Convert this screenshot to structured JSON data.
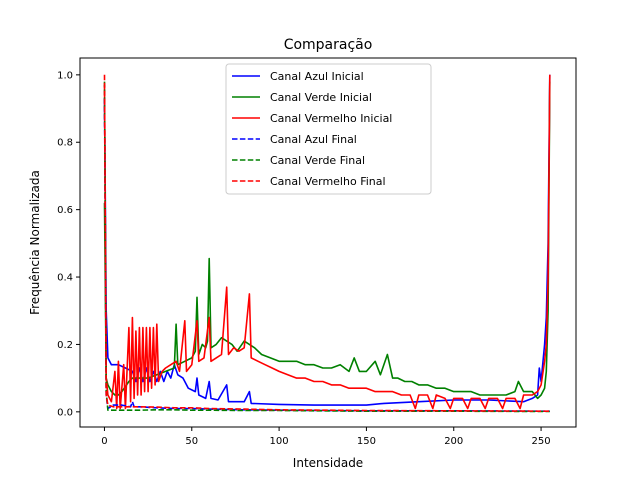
{
  "chart_data": {
    "type": "line",
    "title": "Comparação",
    "xlabel": "Intensidade",
    "ylabel": "Frequência Normalizada",
    "xlim": [
      -14,
      270
    ],
    "ylim": [
      -0.045,
      1.05
    ],
    "xticks": [
      0,
      50,
      100,
      150,
      200,
      250
    ],
    "yticks": [
      0.0,
      0.2,
      0.4,
      0.6,
      0.8,
      1.0
    ],
    "xtick_labels": [
      "0",
      "50",
      "100",
      "150",
      "200",
      "250"
    ],
    "ytick_labels": [
      "0.0",
      "0.2",
      "0.4",
      "0.6",
      "0.8",
      "1.0"
    ],
    "grid": false,
    "legend_position": "top-center",
    "series": [
      {
        "name": "Canal Azul Inicial",
        "color": "#0000ff",
        "dashed": false,
        "points": [
          [
            0,
            0.93
          ],
          [
            1,
            0.3
          ],
          [
            2,
            0.16
          ],
          [
            4,
            0.14
          ],
          [
            8,
            0.14
          ],
          [
            12,
            0.13
          ],
          [
            16,
            0.12
          ],
          [
            18,
            0.09
          ],
          [
            20,
            0.13
          ],
          [
            22,
            0.09
          ],
          [
            24,
            0.13
          ],
          [
            26,
            0.09
          ],
          [
            28,
            0.12
          ],
          [
            30,
            0.09
          ],
          [
            32,
            0.12
          ],
          [
            34,
            0.09
          ],
          [
            36,
            0.12
          ],
          [
            38,
            0.1
          ],
          [
            40,
            0.14
          ],
          [
            42,
            0.11
          ],
          [
            45,
            0.1
          ],
          [
            48,
            0.07
          ],
          [
            52,
            0.06
          ],
          [
            53,
            0.1
          ],
          [
            54,
            0.05
          ],
          [
            58,
            0.04
          ],
          [
            60,
            0.09
          ],
          [
            61,
            0.04
          ],
          [
            65,
            0.035
          ],
          [
            70,
            0.08
          ],
          [
            71,
            0.03
          ],
          [
            80,
            0.03
          ],
          [
            83,
            0.06
          ],
          [
            84,
            0.025
          ],
          [
            100,
            0.022
          ],
          [
            120,
            0.02
          ],
          [
            140,
            0.02
          ],
          [
            150,
            0.02
          ],
          [
            160,
            0.025
          ],
          [
            180,
            0.03
          ],
          [
            200,
            0.035
          ],
          [
            220,
            0.035
          ],
          [
            240,
            0.03
          ],
          [
            245,
            0.04
          ],
          [
            248,
            0.05
          ],
          [
            249,
            0.13
          ],
          [
            250,
            0.09
          ],
          [
            252,
            0.2
          ],
          [
            253,
            0.28
          ],
          [
            254,
            0.5
          ],
          [
            255,
            1.0
          ]
        ]
      },
      {
        "name": "Canal Verde Inicial",
        "color": "#008000",
        "dashed": false,
        "points": [
          [
            0,
            0.62
          ],
          [
            1,
            0.1
          ],
          [
            2,
            0.08
          ],
          [
            4,
            0.06
          ],
          [
            6,
            0.05
          ],
          [
            8,
            0.05
          ],
          [
            10,
            0.06
          ],
          [
            14,
            0.09
          ],
          [
            16,
            0.1
          ],
          [
            20,
            0.1
          ],
          [
            25,
            0.1
          ],
          [
            30,
            0.11
          ],
          [
            35,
            0.12
          ],
          [
            40,
            0.13
          ],
          [
            41,
            0.26
          ],
          [
            42,
            0.14
          ],
          [
            46,
            0.15
          ],
          [
            50,
            0.16
          ],
          [
            52,
            0.18
          ],
          [
            53,
            0.34
          ],
          [
            54,
            0.17
          ],
          [
            56,
            0.2
          ],
          [
            58,
            0.19
          ],
          [
            59,
            0.21
          ],
          [
            60,
            0.455
          ],
          [
            61,
            0.19
          ],
          [
            64,
            0.2
          ],
          [
            67,
            0.22
          ],
          [
            70,
            0.21
          ],
          [
            73,
            0.2
          ],
          [
            76,
            0.18
          ],
          [
            80,
            0.21
          ],
          [
            83,
            0.2
          ],
          [
            86,
            0.19
          ],
          [
            90,
            0.17
          ],
          [
            95,
            0.16
          ],
          [
            100,
            0.15
          ],
          [
            105,
            0.15
          ],
          [
            110,
            0.15
          ],
          [
            115,
            0.14
          ],
          [
            120,
            0.14
          ],
          [
            125,
            0.13
          ],
          [
            130,
            0.13
          ],
          [
            135,
            0.14
          ],
          [
            140,
            0.12
          ],
          [
            143,
            0.16
          ],
          [
            146,
            0.12
          ],
          [
            150,
            0.12
          ],
          [
            155,
            0.15
          ],
          [
            158,
            0.11
          ],
          [
            162,
            0.17
          ],
          [
            165,
            0.1
          ],
          [
            168,
            0.1
          ],
          [
            172,
            0.09
          ],
          [
            176,
            0.09
          ],
          [
            180,
            0.08
          ],
          [
            185,
            0.08
          ],
          [
            190,
            0.07
          ],
          [
            195,
            0.07
          ],
          [
            200,
            0.06
          ],
          [
            205,
            0.06
          ],
          [
            210,
            0.06
          ],
          [
            215,
            0.05
          ],
          [
            220,
            0.05
          ],
          [
            225,
            0.05
          ],
          [
            230,
            0.05
          ],
          [
            235,
            0.06
          ],
          [
            237,
            0.09
          ],
          [
            240,
            0.06
          ],
          [
            245,
            0.06
          ],
          [
            248,
            0.04
          ],
          [
            250,
            0.05
          ],
          [
            252,
            0.07
          ],
          [
            253,
            0.12
          ],
          [
            254,
            0.3
          ],
          [
            255,
            0.98
          ]
        ]
      },
      {
        "name": "Canal Vermelho Inicial",
        "color": "#ff0000",
        "dashed": false,
        "points": [
          [
            0,
            0.97
          ],
          [
            1,
            0.1
          ],
          [
            2,
            0.05
          ],
          [
            4,
            0.03
          ],
          [
            6,
            0.12
          ],
          [
            7,
            0.01
          ],
          [
            8,
            0.15
          ],
          [
            9,
            0.01
          ],
          [
            11,
            0.14
          ],
          [
            12,
            0.01
          ],
          [
            14,
            0.25
          ],
          [
            15,
            0.03
          ],
          [
            16,
            0.28
          ],
          [
            17,
            0.04
          ],
          [
            18,
            0.24
          ],
          [
            19,
            0.05
          ],
          [
            20,
            0.25
          ],
          [
            21,
            0.05
          ],
          [
            22,
            0.25
          ],
          [
            23,
            0.06
          ],
          [
            24,
            0.25
          ],
          [
            25,
            0.06
          ],
          [
            26,
            0.25
          ],
          [
            27,
            0.07
          ],
          [
            28,
            0.25
          ],
          [
            29,
            0.08
          ],
          [
            30,
            0.26
          ],
          [
            31,
            0.09
          ],
          [
            33,
            0.12
          ],
          [
            35,
            0.13
          ],
          [
            38,
            0.14
          ],
          [
            41,
            0.15
          ],
          [
            43,
            0.12
          ],
          [
            46,
            0.27
          ],
          [
            47,
            0.12
          ],
          [
            50,
            0.14
          ],
          [
            53,
            0.27
          ],
          [
            54,
            0.15
          ],
          [
            57,
            0.16
          ],
          [
            60,
            0.28
          ],
          [
            61,
            0.15
          ],
          [
            64,
            0.16
          ],
          [
            67,
            0.17
          ],
          [
            70,
            0.37
          ],
          [
            71,
            0.17
          ],
          [
            74,
            0.19
          ],
          [
            77,
            0.18
          ],
          [
            80,
            0.19
          ],
          [
            83,
            0.35
          ],
          [
            84,
            0.16
          ],
          [
            88,
            0.15
          ],
          [
            92,
            0.14
          ],
          [
            96,
            0.13
          ],
          [
            100,
            0.12
          ],
          [
            105,
            0.11
          ],
          [
            110,
            0.1
          ],
          [
            115,
            0.1
          ],
          [
            120,
            0.09
          ],
          [
            125,
            0.09
          ],
          [
            130,
            0.08
          ],
          [
            135,
            0.08
          ],
          [
            140,
            0.07
          ],
          [
            145,
            0.07
          ],
          [
            150,
            0.07
          ],
          [
            155,
            0.06
          ],
          [
            160,
            0.06
          ],
          [
            165,
            0.06
          ],
          [
            170,
            0.05
          ],
          [
            175,
            0.05
          ],
          [
            178,
            0.01
          ],
          [
            180,
            0.05
          ],
          [
            185,
            0.05
          ],
          [
            188,
            0.01
          ],
          [
            190,
            0.05
          ],
          [
            195,
            0.04
          ],
          [
            198,
            0.01
          ],
          [
            200,
            0.04
          ],
          [
            205,
            0.04
          ],
          [
            208,
            0.01
          ],
          [
            210,
            0.04
          ],
          [
            215,
            0.04
          ],
          [
            218,
            0.01
          ],
          [
            220,
            0.04
          ],
          [
            225,
            0.04
          ],
          [
            228,
            0.01
          ],
          [
            230,
            0.04
          ],
          [
            235,
            0.04
          ],
          [
            238,
            0.01
          ],
          [
            240,
            0.05
          ],
          [
            245,
            0.05
          ],
          [
            248,
            0.06
          ],
          [
            250,
            0.08
          ],
          [
            252,
            0.15
          ],
          [
            253,
            0.2
          ],
          [
            254,
            0.4
          ],
          [
            255,
            1.0
          ]
        ]
      },
      {
        "name": "Canal Azul Final",
        "color": "#0000ff",
        "dashed": true,
        "points": [
          [
            0,
            0.93
          ],
          [
            1,
            0.05
          ],
          [
            2,
            0.01
          ],
          [
            5,
            0.02
          ],
          [
            10,
            0.02
          ],
          [
            15,
            0.015
          ],
          [
            16,
            0.03
          ],
          [
            17,
            0.015
          ],
          [
            20,
            0.015
          ],
          [
            30,
            0.012
          ],
          [
            40,
            0.01
          ],
          [
            50,
            0.01
          ],
          [
            60,
            0.008
          ],
          [
            80,
            0.006
          ],
          [
            100,
            0.005
          ],
          [
            150,
            0.003
          ],
          [
            200,
            0.003
          ],
          [
            255,
            0.002
          ]
        ]
      },
      {
        "name": "Canal Verde Final",
        "color": "#008000",
        "dashed": true,
        "points": [
          [
            0,
            0.98
          ],
          [
            1,
            0.06
          ],
          [
            2,
            0.005
          ],
          [
            5,
            0.005
          ],
          [
            10,
            0.005
          ],
          [
            20,
            0.005
          ],
          [
            30,
            0.006
          ],
          [
            40,
            0.006
          ],
          [
            50,
            0.005
          ],
          [
            60,
            0.005
          ],
          [
            80,
            0.004
          ],
          [
            100,
            0.004
          ],
          [
            150,
            0.002
          ],
          [
            200,
            0.002
          ],
          [
            255,
            0.001
          ]
        ]
      },
      {
        "name": "Canal Vermelho Final",
        "color": "#ff0000",
        "dashed": true,
        "points": [
          [
            0,
            1.0
          ],
          [
            1,
            0.05
          ],
          [
            2,
            0.02
          ],
          [
            5,
            0.015
          ],
          [
            10,
            0.015
          ],
          [
            20,
            0.015
          ],
          [
            30,
            0.014
          ],
          [
            40,
            0.012
          ],
          [
            50,
            0.012
          ],
          [
            60,
            0.01
          ],
          [
            80,
            0.008
          ],
          [
            100,
            0.006
          ],
          [
            150,
            0.004
          ],
          [
            200,
            0.003
          ],
          [
            255,
            0.002
          ]
        ]
      }
    ]
  }
}
